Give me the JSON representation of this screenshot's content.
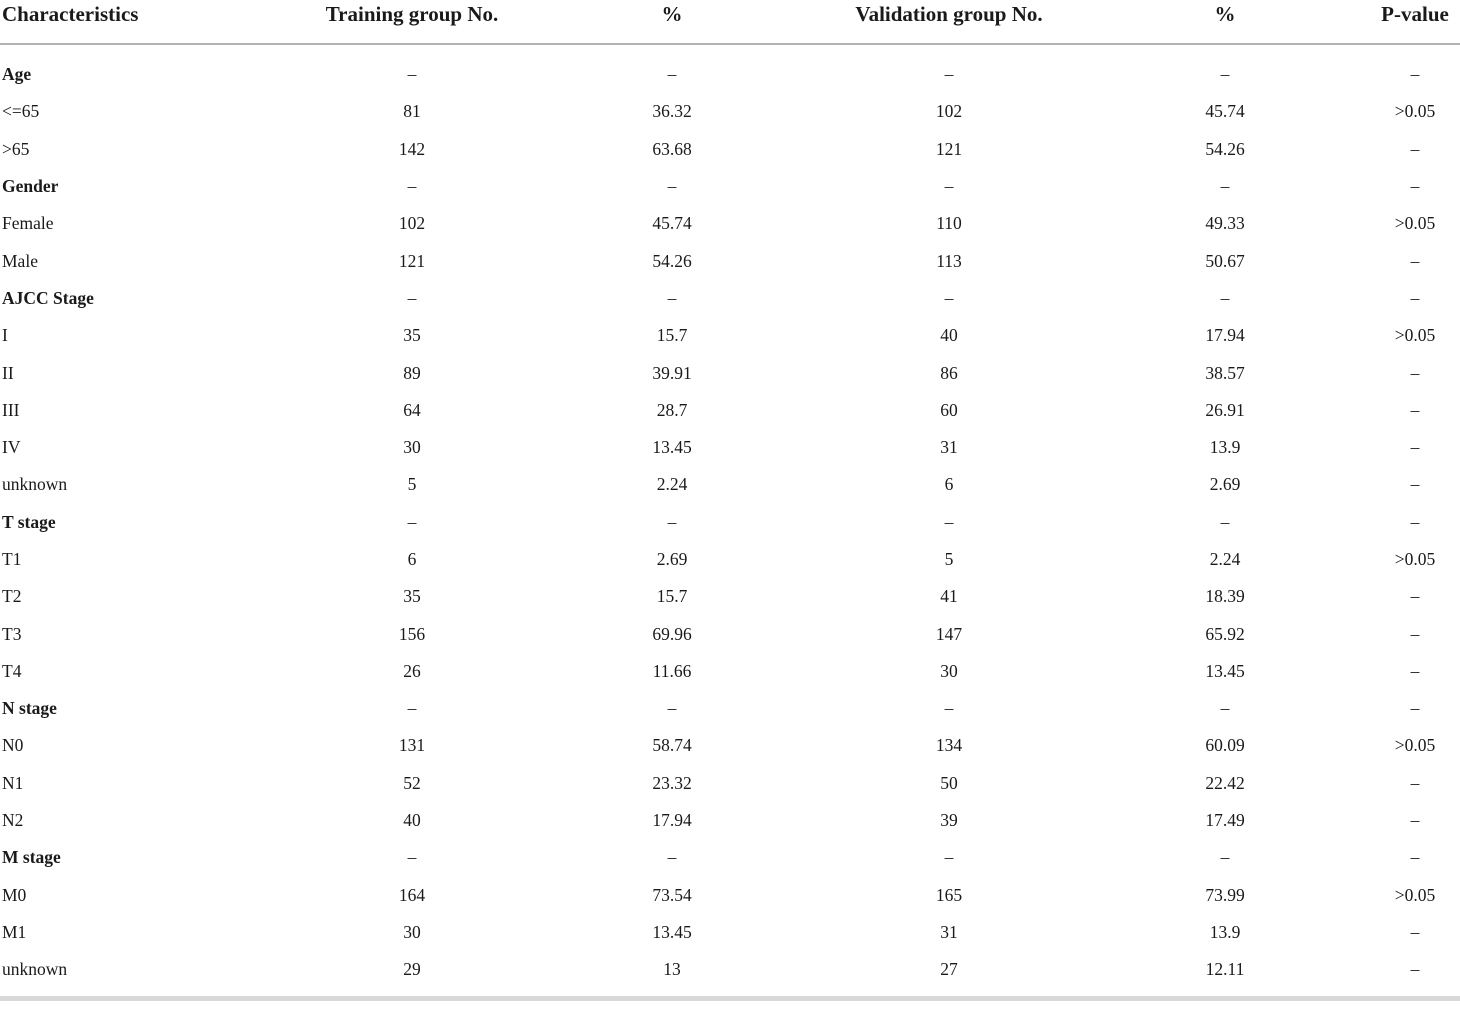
{
  "colors": {
    "text": "#1a1a1a",
    "header_rule": "#b3b3b3",
    "bottom_rule": "#d9d9d9"
  },
  "table": {
    "columns": [
      "Characteristics",
      "Training group No.",
      "%",
      "Validation group No.",
      "%",
      "P-value"
    ],
    "rows": [
      {
        "label": "Age",
        "bold": true,
        "values": [
          "–",
          "–",
          "–",
          "–",
          "–"
        ]
      },
      {
        "label": "<=65",
        "bold": false,
        "values": [
          "81",
          "36.32",
          "102",
          "45.74",
          ">0.05"
        ]
      },
      {
        "label": ">65",
        "bold": false,
        "values": [
          "142",
          "63.68",
          "121",
          "54.26",
          "–"
        ]
      },
      {
        "label": "Gender",
        "bold": true,
        "values": [
          "–",
          "–",
          "–",
          "–",
          "–"
        ]
      },
      {
        "label": "Female",
        "bold": false,
        "values": [
          "102",
          "45.74",
          "110",
          "49.33",
          ">0.05"
        ]
      },
      {
        "label": "Male",
        "bold": false,
        "values": [
          "121",
          "54.26",
          "113",
          "50.67",
          "–"
        ]
      },
      {
        "label": "AJCC Stage",
        "bold": true,
        "values": [
          "–",
          "–",
          "–",
          "–",
          "–"
        ]
      },
      {
        "label": "I",
        "bold": false,
        "values": [
          "35",
          "15.7",
          "40",
          "17.94",
          ">0.05"
        ]
      },
      {
        "label": "II",
        "bold": false,
        "values": [
          "89",
          "39.91",
          "86",
          "38.57",
          "–"
        ]
      },
      {
        "label": "III",
        "bold": false,
        "values": [
          "64",
          "28.7",
          "60",
          "26.91",
          "–"
        ]
      },
      {
        "label": "IV",
        "bold": false,
        "values": [
          "30",
          "13.45",
          "31",
          "13.9",
          "–"
        ]
      },
      {
        "label": "unknown",
        "bold": false,
        "values": [
          "5",
          "2.24",
          "6",
          "2.69",
          "–"
        ]
      },
      {
        "label": "T stage",
        "bold": true,
        "values": [
          "–",
          "–",
          "–",
          "–",
          "–"
        ]
      },
      {
        "label": "T1",
        "bold": false,
        "values": [
          "6",
          "2.69",
          "5",
          "2.24",
          ">0.05"
        ]
      },
      {
        "label": "T2",
        "bold": false,
        "values": [
          "35",
          "15.7",
          "41",
          "18.39",
          "–"
        ]
      },
      {
        "label": "T3",
        "bold": false,
        "values": [
          "156",
          "69.96",
          "147",
          "65.92",
          "–"
        ]
      },
      {
        "label": "T4",
        "bold": false,
        "values": [
          "26",
          "11.66",
          "30",
          "13.45",
          "–"
        ]
      },
      {
        "label": "N stage",
        "bold": true,
        "values": [
          "–",
          "–",
          "–",
          "–",
          "–"
        ]
      },
      {
        "label": "N0",
        "bold": false,
        "values": [
          "131",
          "58.74",
          "134",
          "60.09",
          ">0.05"
        ]
      },
      {
        "label": "N1",
        "bold": false,
        "values": [
          "52",
          "23.32",
          "50",
          "22.42",
          "–"
        ]
      },
      {
        "label": "N2",
        "bold": false,
        "values": [
          "40",
          "17.94",
          "39",
          "17.49",
          "–"
        ]
      },
      {
        "label": "M stage",
        "bold": true,
        "values": [
          "–",
          "–",
          "–",
          "–",
          "–"
        ]
      },
      {
        "label": "M0",
        "bold": false,
        "values": [
          "164",
          "73.54",
          "165",
          "73.99",
          ">0.05"
        ]
      },
      {
        "label": "M1",
        "bold": false,
        "values": [
          "30",
          "13.45",
          "31",
          "13.9",
          "–"
        ]
      },
      {
        "label": "unknown",
        "bold": false,
        "values": [
          "29",
          "13",
          "27",
          "12.11",
          "–"
        ]
      }
    ]
  }
}
